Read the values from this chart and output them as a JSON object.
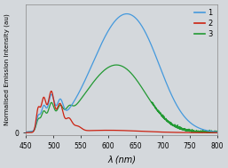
{
  "title": "",
  "xlabel": "λ (nm)",
  "ylabel": "Normalised Emission Intensity (au)",
  "xlim": [
    450,
    800
  ],
  "ylim": [
    -0.02,
    1.08
  ],
  "xticks": [
    450,
    500,
    550,
    600,
    650,
    700,
    750,
    800
  ],
  "yticks": [
    0
  ],
  "bg_color": "#d4d8dc",
  "plot_bg": "#d4d8dc",
  "curve1_color": "#4499dd",
  "curve2_color": "#cc2211",
  "curve3_color": "#229933",
  "legend_labels": [
    "1",
    "2",
    "3"
  ]
}
